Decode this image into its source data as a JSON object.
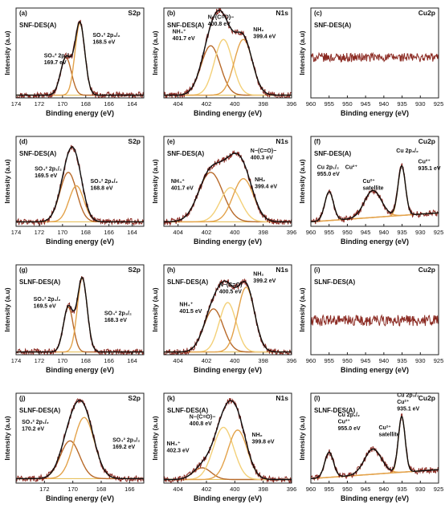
{
  "figure": {
    "x_axis_label": "Binding energy (eV)",
    "y_axis_label": "Intensity (a.u)"
  },
  "colors": {
    "raw": "#8b2a22",
    "envelope": "#111111",
    "peak_dark": "#b86a2a",
    "peak_mid": "#e3a24a",
    "peak_light": "#f3d078",
    "background": "#e8c260",
    "axis": "#222222"
  },
  "chart_data": [
    {
      "panel": "(a)",
      "sample": "SNF-DES(A)",
      "region": "S2p",
      "type": "line",
      "x_range": [
        174,
        163
      ],
      "x_ticks": [
        174,
        172,
        170,
        168,
        166,
        164
      ],
      "peaks": [
        {
          "center": 169.7,
          "fwhm": 1.1,
          "amp": 0.42,
          "color": "peak_dark"
        },
        {
          "center": 168.5,
          "fwhm": 1.0,
          "amp": 0.8,
          "color": "peak_mid"
        }
      ],
      "baseline": 0.03,
      "annotations": [
        {
          "lines": [
            "SO₄² 2p₁/₂",
            "169.7 eV"
          ],
          "at": [
            171.6,
            0.45
          ]
        },
        {
          "lines": [
            "SO₄² 2p₃/₂",
            "168.5 eV"
          ],
          "at": [
            167.4,
            0.68
          ]
        }
      ]
    },
    {
      "panel": "(b)",
      "sample": "SNF-DES(A)",
      "region": "N1s",
      "type": "line",
      "x_range": [
        405,
        396
      ],
      "x_ticks": [
        404,
        402,
        400,
        398,
        396
      ],
      "peaks": [
        {
          "center": 401.7,
          "fwhm": 1.6,
          "amp": 0.55,
          "color": "peak_dark"
        },
        {
          "center": 400.8,
          "fwhm": 1.5,
          "amp": 0.62,
          "color": "peak_light"
        },
        {
          "center": 399.4,
          "fwhm": 1.5,
          "amp": 0.62,
          "color": "peak_mid"
        }
      ],
      "baseline": 0.03,
      "annotations": [
        {
          "lines": [
            "NH₄⁺",
            "401.7 eV"
          ],
          "at": [
            404.4,
            0.72
          ]
        },
        {
          "lines": [
            "N−(C=O)−",
            "400.8 eV"
          ],
          "at": [
            401.9,
            0.88
          ]
        },
        {
          "lines": [
            "NH₂",
            "399.4 eV"
          ],
          "at": [
            398.7,
            0.74
          ]
        }
      ]
    },
    {
      "panel": "(c)",
      "sample": "SNF-DES(A)",
      "region": "Cu2p",
      "type": "line",
      "x_range": [
        960,
        925
      ],
      "x_ticks": [
        960,
        955,
        950,
        945,
        940,
        935,
        930,
        925
      ],
      "noise_level": 0.45,
      "noise_amp": 0.05,
      "annotations": []
    },
    {
      "panel": "(d)",
      "sample": "SNF-DES(A)",
      "region": "S2p",
      "type": "line",
      "x_range": [
        174,
        163
      ],
      "x_ticks": [
        174,
        172,
        170,
        168,
        166,
        164
      ],
      "peaks": [
        {
          "center": 169.5,
          "fwhm": 1.7,
          "amp": 0.55,
          "color": "peak_dark"
        },
        {
          "center": 168.8,
          "fwhm": 1.5,
          "amp": 0.4,
          "color": "peak_mid"
        }
      ],
      "baseline": 0.05,
      "annotations": [
        {
          "lines": [
            "SO₄² 2p₁/₂",
            "169.5 eV"
          ],
          "at": [
            172.4,
            0.62
          ]
        },
        {
          "lines": [
            "SO₄² 2p₃/₂",
            "168.8 eV"
          ],
          "at": [
            167.6,
            0.48
          ]
        }
      ]
    },
    {
      "panel": "(e)",
      "sample": "SNF-DES(A)",
      "region": "N1s",
      "type": "line",
      "x_range": [
        405,
        396
      ],
      "x_ticks": [
        404,
        402,
        400,
        398,
        396
      ],
      "peaks": [
        {
          "center": 401.7,
          "fwhm": 2.0,
          "amp": 0.55,
          "color": "peak_dark"
        },
        {
          "center": 400.3,
          "fwhm": 1.7,
          "amp": 0.38,
          "color": "peak_light"
        },
        {
          "center": 399.4,
          "fwhm": 1.7,
          "amp": 0.48,
          "color": "peak_mid"
        }
      ],
      "baseline": 0.05,
      "annotations": [
        {
          "lines": [
            "NH₄⁺",
            "401.7 eV"
          ],
          "at": [
            404.5,
            0.48
          ]
        },
        {
          "lines": [
            "N−(C=O)−",
            "400.3 eV"
          ],
          "at": [
            398.9,
            0.82
          ]
        },
        {
          "lines": [
            "NH₂",
            "399.4 eV"
          ],
          "at": [
            398.6,
            0.5
          ]
        }
      ]
    },
    {
      "panel": "(f)",
      "sample": "SNF-DES(A)",
      "region": "Cu2p",
      "type": "line",
      "x_range": [
        960,
        925
      ],
      "x_ticks": [
        960,
        955,
        950,
        945,
        940,
        935,
        930,
        925
      ],
      "peaks": [
        {
          "center": 955.0,
          "fwhm": 2.8,
          "amp": 0.32,
          "color": "peak_mid"
        },
        {
          "center": 943.0,
          "fwhm": 5.5,
          "amp": 0.3,
          "color": "peak_mid"
        },
        {
          "center": 935.1,
          "fwhm": 2.4,
          "amp": 0.55,
          "color": "peak_mid"
        }
      ],
      "baseline": 0.05,
      "baseline_slope": 0.1,
      "annotations": [
        {
          "lines": [
            "Cu 2p₁/₂",
            "955.0 eV"
          ],
          "at": [
            958.3,
            0.64
          ]
        },
        {
          "lines": [
            "Cu²⁺"
          ],
          "at": [
            950.6,
            0.64
          ]
        },
        {
          "lines": [
            "Cu²⁺",
            "satellite"
          ],
          "at": [
            945.8,
            0.48
          ]
        },
        {
          "lines": [
            "Cu 2p₃/₂"
          ],
          "at": [
            936.6,
            0.82
          ]
        },
        {
          "lines": [
            "Cu²⁺",
            "935.1 eV"
          ],
          "at": [
            930.6,
            0.7
          ]
        }
      ]
    },
    {
      "panel": "(g)",
      "sample": "SLNF-DES(A)",
      "region": "S2p",
      "type": "line",
      "x_range": [
        174,
        163
      ],
      "x_ticks": [
        174,
        172,
        170,
        168,
        166,
        164
      ],
      "peaks": [
        {
          "center": 169.5,
          "fwhm": 1.0,
          "amp": 0.5,
          "color": "peak_dark"
        },
        {
          "center": 168.3,
          "fwhm": 1.0,
          "amp": 0.82,
          "color": "peak_mid"
        }
      ],
      "baseline": 0.03,
      "annotations": [
        {
          "lines": [
            "SO₄² 2p₁/₂",
            "169.5 eV"
          ],
          "at": [
            172.5,
            0.6
          ]
        },
        {
          "lines": [
            "SO₄² 2p₃/₂",
            "168.3 eV"
          ],
          "at": [
            166.4,
            0.44
          ]
        }
      ]
    },
    {
      "panel": "(h)",
      "sample": "SLNF-DES(A)",
      "region": "N1s",
      "type": "line",
      "x_range": [
        405,
        396
      ],
      "x_ticks": [
        404,
        402,
        400,
        398,
        396
      ],
      "peaks": [
        {
          "center": 401.5,
          "fwhm": 1.6,
          "amp": 0.48,
          "color": "peak_dark"
        },
        {
          "center": 400.5,
          "fwhm": 1.4,
          "amp": 0.55,
          "color": "peak_light"
        },
        {
          "center": 399.2,
          "fwhm": 1.4,
          "amp": 0.72,
          "color": "peak_mid"
        }
      ],
      "baseline": 0.03,
      "annotations": [
        {
          "lines": [
            "NH₄⁺",
            "401.5 eV"
          ],
          "at": [
            403.9,
            0.54
          ]
        },
        {
          "lines": [
            "N−(C=O)",
            "400.5 eV"
          ],
          "at": [
            401.1,
            0.76
          ]
        },
        {
          "lines": [
            "NH₂",
            "399.2 eV"
          ],
          "at": [
            398.7,
            0.88
          ]
        }
      ]
    },
    {
      "panel": "(i)",
      "sample": "SLNF-DES(A)",
      "region": "Cu2p",
      "type": "line",
      "x_range": [
        960,
        925
      ],
      "x_ticks": [
        960,
        955,
        950,
        945,
        940,
        935,
        930,
        925
      ],
      "noise_level": 0.38,
      "noise_amp": 0.06,
      "annotations": []
    },
    {
      "panel": "(j)",
      "sample": "SLNF-DES(A)",
      "region": "S2p",
      "type": "line",
      "x_range": [
        174,
        165
      ],
      "x_ticks": [
        172,
        170,
        168,
        166
      ],
      "peaks": [
        {
          "center": 170.2,
          "fwhm": 1.6,
          "amp": 0.42,
          "color": "peak_dark"
        },
        {
          "center": 169.2,
          "fwhm": 1.7,
          "amp": 0.68,
          "color": "peak_mid"
        }
      ],
      "baseline": 0.05,
      "annotations": [
        {
          "lines": [
            "SO₄² 2p₁/₂",
            "170.2 eV"
          ],
          "at": [
            173.6,
            0.66
          ]
        },
        {
          "lines": [
            "SO₄² 2p₃/₂",
            "169.2 eV"
          ],
          "at": [
            167.2,
            0.46
          ]
        }
      ]
    },
    {
      "panel": "(k)",
      "sample": "SLNF-DES(A)",
      "region": "N1s",
      "type": "line",
      "x_range": [
        405,
        396
      ],
      "x_ticks": [
        404,
        402,
        400,
        398,
        396
      ],
      "peaks": [
        {
          "center": 402.3,
          "fwhm": 1.5,
          "amp": 0.13,
          "color": "peak_dark"
        },
        {
          "center": 400.8,
          "fwhm": 1.7,
          "amp": 0.58,
          "color": "peak_light"
        },
        {
          "center": 399.8,
          "fwhm": 1.6,
          "amp": 0.55,
          "color": "peak_mid"
        }
      ],
      "baseline": 0.04,
      "annotations": [
        {
          "lines": [
            "NH₄⁺",
            "402.3 eV"
          ],
          "at": [
            404.8,
            0.42
          ]
        },
        {
          "lines": [
            "N−(C=O)−",
            "400.8 eV"
          ],
          "at": [
            403.2,
            0.72
          ]
        },
        {
          "lines": [
            "NH₂",
            "399.8 eV"
          ],
          "at": [
            398.8,
            0.52
          ]
        }
      ]
    },
    {
      "panel": "(l)",
      "sample": "SLNF-DES(A)",
      "region": "Cu2p",
      "type": "line",
      "x_range": [
        960,
        925
      ],
      "x_ticks": [
        960,
        955,
        950,
        945,
        940,
        935,
        930,
        925
      ],
      "peaks": [
        {
          "center": 955.0,
          "fwhm": 2.8,
          "amp": 0.28,
          "color": "peak_mid"
        },
        {
          "center": 943.0,
          "fwhm": 5.5,
          "amp": 0.28,
          "color": "peak_mid"
        },
        {
          "center": 935.1,
          "fwhm": 2.2,
          "amp": 0.62,
          "color": "peak_mid"
        }
      ],
      "baseline": 0.05,
      "baseline_slope": 0.1,
      "annotations": [
        {
          "lines": [
            "Cu 2p₁/₂",
            "Cu²⁺",
            "955.0 eV"
          ],
          "at": [
            952.6,
            0.74
          ]
        },
        {
          "lines": [
            "Cu²⁺",
            "satellite"
          ],
          "at": [
            941.4,
            0.6
          ]
        },
        {
          "lines": [
            "Cu 2p₃/₂",
            "Cu²⁺",
            "935.1 eV"
          ],
          "at": [
            936.4,
            0.96
          ]
        }
      ]
    }
  ]
}
